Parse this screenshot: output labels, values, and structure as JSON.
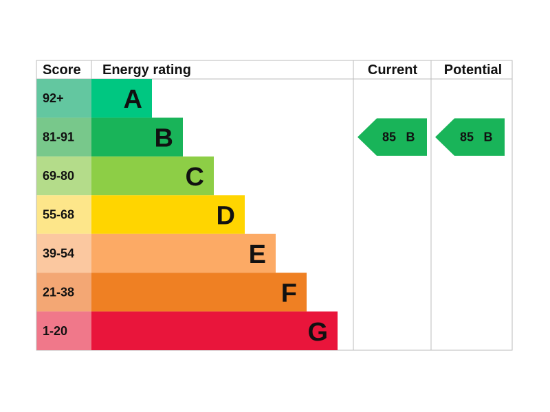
{
  "header": {
    "score": "Score",
    "rating": "Energy rating",
    "current": "Current",
    "potential": "Potential"
  },
  "bands": [
    {
      "score": "92+",
      "letter": "A",
      "score_color": "#63c7a0",
      "bar_color": "#00c781"
    },
    {
      "score": "81-91",
      "letter": "B",
      "score_color": "#78c88b",
      "bar_color": "#19b459"
    },
    {
      "score": "69-80",
      "letter": "C",
      "score_color": "#b4dc8a",
      "bar_color": "#8dce46"
    },
    {
      "score": "55-68",
      "letter": "D",
      "score_color": "#fde68a",
      "bar_color": "#ffd500"
    },
    {
      "score": "39-54",
      "letter": "E",
      "score_color": "#fbc8a0",
      "bar_color": "#fcaa65"
    },
    {
      "score": "21-38",
      "letter": "F",
      "score_color": "#f3a774",
      "bar_color": "#ef8023"
    },
    {
      "score": "1-20",
      "letter": "G",
      "score_color": "#f0788a",
      "bar_color": "#e9153b"
    }
  ],
  "current": {
    "score": 85,
    "letter": "B"
  },
  "potential": {
    "score": 85,
    "letter": "B"
  }
}
